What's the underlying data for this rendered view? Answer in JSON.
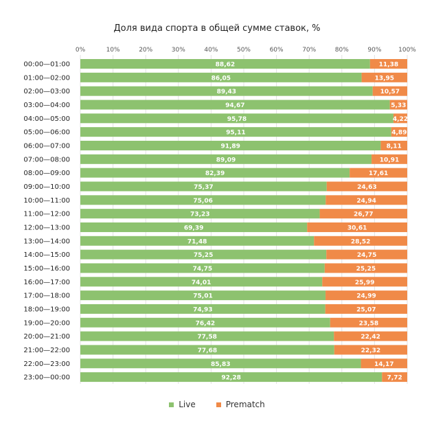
{
  "chart_data": {
    "type": "bar",
    "orientation": "horizontal",
    "stacked": true,
    "title": "Доля вида спорта в общей сумме ставок, %",
    "xlabel": "",
    "ylabel": "",
    "xlim": [
      0,
      100
    ],
    "x_ticks": [
      "0%",
      "10%",
      "20%",
      "30%",
      "40%",
      "50%",
      "60%",
      "70%",
      "80%",
      "90%",
      "100%"
    ],
    "grid": true,
    "legend_position": "bottom",
    "categories": [
      "00:00—01:00",
      "01:00—02:00",
      "02:00—03:00",
      "03:00—04:00",
      "04:00—05:00",
      "05:00—06:00",
      "06:00—07:00",
      "07:00—08:00",
      "08:00—09:00",
      "09:00—10:00",
      "10:00—11:00",
      "11:00—12:00",
      "12:00—13:00",
      "13:00—14:00",
      "14:00—15:00",
      "15:00—16:00",
      "16:00—17:00",
      "17:00—18:00",
      "18:00—19:00",
      "19:00—20:00",
      "20:00—21:00",
      "21:00—22:00",
      "22:00—23:00",
      "23:00—00:00"
    ],
    "series": [
      {
        "name": "Live",
        "color": "#8dc26f",
        "values": [
          88.62,
          86.05,
          89.43,
          94.67,
          95.78,
          95.11,
          91.89,
          89.09,
          82.39,
          75.37,
          75.06,
          73.23,
          69.39,
          71.48,
          75.25,
          74.75,
          74.01,
          75.01,
          74.93,
          76.42,
          77.58,
          77.68,
          85.83,
          92.28
        ],
        "labels": [
          "88,62",
          "86,05",
          "89,43",
          "94,67",
          "95,78",
          "95,11",
          "91,89",
          "89,09",
          "82,39",
          "75,37",
          "75,06",
          "73,23",
          "69,39",
          "71,48",
          "75,25",
          "74,75",
          "74,01",
          "75,01",
          "74,93",
          "76,42",
          "77,58",
          "77,68",
          "85,83",
          "92,28"
        ]
      },
      {
        "name": "Prematch",
        "color": "#f08a48",
        "values": [
          11.38,
          13.95,
          10.57,
          5.33,
          4.22,
          4.89,
          8.11,
          10.91,
          17.61,
          24.63,
          24.94,
          26.77,
          30.61,
          28.52,
          24.75,
          25.25,
          25.99,
          24.99,
          25.07,
          23.58,
          22.42,
          22.32,
          14.17,
          7.72
        ],
        "labels": [
          "11,38",
          "13,95",
          "10,57",
          "5,33",
          "4,22",
          "4,89",
          "8,11",
          "10,91",
          "17,61",
          "24,63",
          "24,94",
          "26,77",
          "30,61",
          "28,52",
          "24,75",
          "25,25",
          "25,99",
          "24,99",
          "25,07",
          "23,58",
          "22,42",
          "22,32",
          "14,17",
          "7,72"
        ]
      }
    ]
  }
}
